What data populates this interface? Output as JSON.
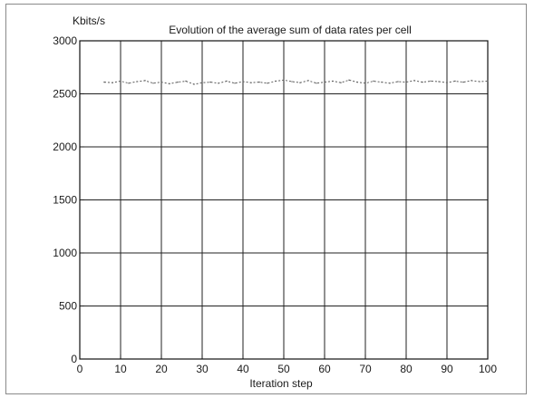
{
  "chart_data": {
    "type": "line",
    "title": "Evolution of the average sum of data rates per cell",
    "ylabel": "Kbits/s",
    "xlabel": "Iteration step",
    "xlim": [
      0,
      100
    ],
    "ylim": [
      0,
      3000
    ],
    "xticks": [
      0,
      10,
      20,
      30,
      40,
      50,
      60,
      70,
      80,
      90,
      100
    ],
    "yticks": [
      0,
      500,
      1000,
      1500,
      2000,
      2500,
      3000
    ],
    "grid": true,
    "series": [
      {
        "color": "#5a5a5a",
        "x": [
          6,
          8,
          10,
          12,
          14,
          16,
          18,
          20,
          22,
          24,
          26,
          28,
          30,
          32,
          34,
          36,
          38,
          40,
          42,
          44,
          46,
          48,
          50,
          52,
          54,
          56,
          58,
          60,
          62,
          64,
          66,
          68,
          70,
          72,
          74,
          76,
          78,
          80,
          82,
          84,
          86,
          88,
          90,
          92,
          94,
          96,
          98,
          100
        ],
        "y": [
          2610,
          2605,
          2620,
          2600,
          2615,
          2625,
          2600,
          2610,
          2595,
          2610,
          2620,
          2590,
          2605,
          2610,
          2600,
          2620,
          2600,
          2615,
          2605,
          2610,
          2600,
          2620,
          2630,
          2615,
          2605,
          2625,
          2600,
          2610,
          2620,
          2605,
          2630,
          2610,
          2600,
          2620,
          2610,
          2600,
          2615,
          2610,
          2625,
          2610,
          2620,
          2615,
          2605,
          2620,
          2610,
          2625,
          2615,
          2620
        ]
      }
    ]
  }
}
